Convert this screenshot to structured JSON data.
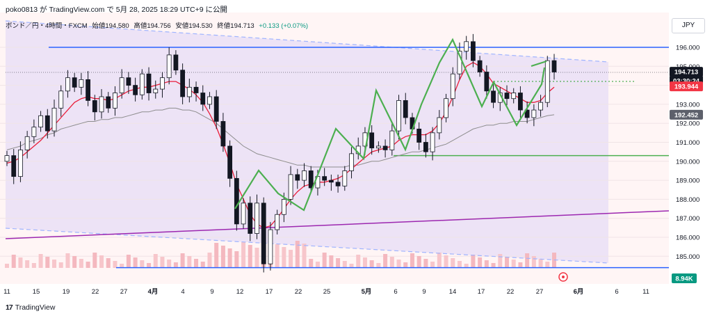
{
  "header": {
    "author_line": "poko0813 が TradingView.com で 5月 28, 2025 18:29 UTC+9 に公開"
  },
  "legend": {
    "symbol": "ポンド／円・4時間・FXCM",
    "open": "始値194.580",
    "high": "高値194.756",
    "low": "安値194.530",
    "close": "終値194.713",
    "change": "+0.133 (+0.07%)"
  },
  "currency_button": "JPY",
  "brand": {
    "logo": "17",
    "name": "TradingView"
  },
  "chart_data": {
    "type": "line",
    "title": "",
    "symbol": "GBPJPY",
    "timeframe": "4時間",
    "ylim": [
      184.4,
      197.2
    ],
    "y_ticks": [
      196,
      195,
      194,
      193,
      192,
      191,
      190,
      189,
      188,
      187,
      186,
      185
    ],
    "y_tick_labels": [
      "196.000",
      "195.000",
      "194.000",
      "193.000",
      "192.000",
      "191.000",
      "190.000",
      "189.000",
      "188.000",
      "187.000",
      "186.000",
      "185.000"
    ],
    "x_tick_labels": [
      "11",
      "15",
      "19",
      "22",
      "27",
      "4月",
      "4",
      "9",
      "12",
      "17",
      "22",
      "25",
      "5月",
      "6",
      "9",
      "14",
      "17",
      "22",
      "27",
      "6月",
      "6",
      "11"
    ],
    "x_bold_labels": [
      "4月",
      "5月",
      "6月"
    ],
    "price_tags": [
      {
        "label": "194.713",
        "value": 194.713,
        "bg": "#131722"
      },
      {
        "label": "03:30:24",
        "value": 194.25,
        "bg": "#131722"
      },
      {
        "label": "193.944",
        "value": 193.944,
        "bg": "#f23645"
      },
      {
        "label": "192.452",
        "value": 192.452,
        "bg": "#5d606b"
      }
    ],
    "volume_tag": "8.94K",
    "series": [
      {
        "name": "",
        "kind": "candles",
        "close": [
          190.3,
          189.2,
          190.6,
          191.3,
          191.8,
          192.4,
          191.6,
          192.8,
          193.7,
          194.4,
          193.9,
          194.3,
          193.2,
          192.6,
          193.4,
          192.8,
          193.6,
          194.4,
          194.0,
          193.5,
          194.6,
          193.6,
          193.8,
          194.4,
          195.6,
          194.8,
          193.4,
          193.9,
          193.6,
          193.0,
          193.4,
          192.1,
          190.8,
          189.1,
          186.7,
          187.8,
          186.2,
          187.8,
          184.6,
          186.4,
          187.2,
          188.0,
          189.3,
          189.0,
          189.5,
          188.6,
          189.2,
          189.0,
          188.9,
          188.7,
          189.5,
          190.4,
          190.8,
          191.5,
          190.7,
          190.8,
          190.6,
          191.6,
          193.2,
          192.3,
          191.7,
          191.0,
          190.5,
          191.5,
          192.3,
          193.3,
          194.6,
          195.8,
          196.3,
          195.3,
          194.7,
          193.7,
          193.1,
          193.6,
          193.3,
          193.6,
          192.7,
          192.3,
          192.7,
          193.1,
          195.3,
          194.7
        ],
        "ma_fast": [
          189.9,
          190.0,
          190.2,
          190.5,
          190.8,
          191.1,
          191.5,
          191.9,
          192.3,
          192.7,
          193.1,
          193.3,
          193.4,
          193.3,
          193.3,
          193.2,
          193.3,
          193.5,
          193.7,
          193.8,
          193.9,
          193.9,
          194.0,
          194.1,
          194.2,
          194.2,
          194.0,
          193.8,
          193.5,
          193.1,
          192.5,
          191.8,
          190.9,
          189.9,
          188.8,
          188.0,
          187.2,
          186.7,
          186.5,
          186.6,
          187.0,
          187.5,
          188.0,
          188.4,
          188.7,
          188.8,
          188.9,
          188.9,
          189.0,
          189.1,
          189.3,
          189.6,
          189.9,
          190.2,
          190.5,
          190.6,
          190.7,
          190.8,
          191.1,
          191.3,
          191.4,
          191.4,
          191.4,
          191.6,
          192.0,
          192.6,
          193.4,
          194.3,
          195.0,
          195.2,
          195.0,
          194.6,
          194.1,
          193.9,
          193.7,
          193.5,
          193.3,
          193.1,
          193.1,
          193.2,
          193.6,
          193.9
        ],
        "ma_slow": [
          190.6,
          190.7,
          190.8,
          191.0,
          191.1,
          191.2,
          191.4,
          191.5,
          191.7,
          191.8,
          191.9,
          192.0,
          192.1,
          192.1,
          192.2,
          192.2,
          192.3,
          192.3,
          192.4,
          192.5,
          192.6,
          192.6,
          192.7,
          192.7,
          192.8,
          192.8,
          192.7,
          192.7,
          192.6,
          192.4,
          192.2,
          192.0,
          191.7,
          191.4,
          191.1,
          190.8,
          190.6,
          190.4,
          190.3,
          190.2,
          190.1,
          190.0,
          189.9,
          189.8,
          189.8,
          189.7,
          189.7,
          189.7,
          189.7,
          189.7,
          189.7,
          189.8,
          189.8,
          189.9,
          190.0,
          190.0,
          190.1,
          190.2,
          190.3,
          190.4,
          190.5,
          190.5,
          190.6,
          190.7,
          190.8,
          190.9,
          191.1,
          191.3,
          191.5,
          191.7,
          191.8,
          191.9,
          191.9,
          192.0,
          192.0,
          192.1,
          192.1,
          192.1,
          192.2,
          192.3,
          192.4,
          192.45
        ]
      }
    ],
    "levels": [
      {
        "value": 196.0,
        "color": "#2962ff"
      },
      {
        "value": 190.3,
        "color": "#4caf50"
      },
      {
        "value": 184.4,
        "color": "#2962ff"
      }
    ]
  }
}
